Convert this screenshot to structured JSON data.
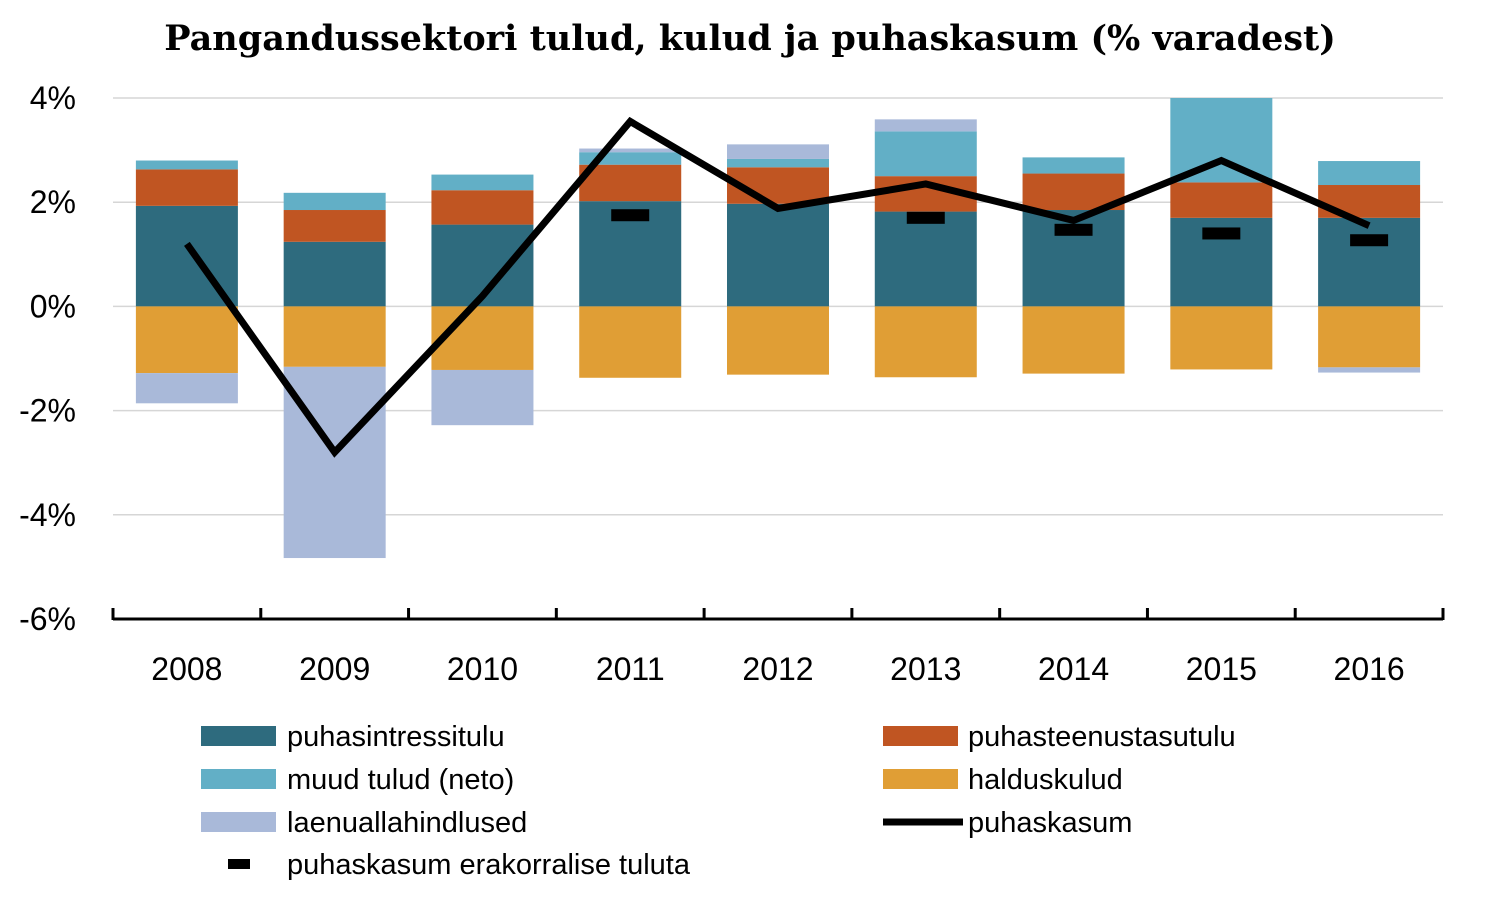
{
  "chart_data": {
    "type": "bar",
    "title": "Pangandussektori tulud, kulud ja puhaskasum (% varadest)",
    "categories": [
      "2008",
      "2009",
      "2010",
      "2011",
      "2012",
      "2013",
      "2014",
      "2015",
      "2016"
    ],
    "y_ticks": [
      "4%",
      "2%",
      "0%",
      "-2%",
      "-4%",
      "-6%"
    ],
    "y_tick_values": [
      4,
      2,
      0,
      -2,
      -4,
      -6
    ],
    "ylim": [
      -6,
      4
    ],
    "grid": true,
    "legend_position": "bottom",
    "stacked": true,
    "series": [
      {
        "name": "puhasintressitulu",
        "kind": "bar",
        "color": "#2e6b7e",
        "values": [
          1.93,
          1.24,
          1.57,
          2.02,
          1.97,
          1.82,
          1.85,
          1.7,
          1.7
        ]
      },
      {
        "name": "puhasteenustasutulu",
        "kind": "bar",
        "color": "#c05522",
        "values": [
          0.7,
          0.61,
          0.66,
          0.7,
          0.7,
          0.68,
          0.7,
          0.68,
          0.63
        ]
      },
      {
        "name": "muud tulud (neto)",
        "kind": "bar",
        "color": "#62afc6",
        "values": [
          0.17,
          0.33,
          0.3,
          0.24,
          0.16,
          0.86,
          0.31,
          1.62,
          0.46
        ]
      },
      {
        "name": "halduskulud",
        "kind": "bar",
        "color": "#e09e35",
        "values": [
          -1.28,
          -1.16,
          -1.22,
          -1.37,
          -1.31,
          -1.36,
          -1.29,
          -1.21,
          -1.17
        ]
      },
      {
        "name": "laenuallahindlused",
        "kind": "bar",
        "color": "#a9b9d9",
        "values": [
          -0.58,
          -3.67,
          -1.06,
          0.07,
          0.28,
          0.23,
          0,
          0,
          -0.1
        ]
      },
      {
        "name": "puhaskasum",
        "kind": "line",
        "color": "#000000",
        "values": [
          1.2,
          -2.8,
          0.2,
          3.55,
          1.88,
          2.35,
          1.65,
          2.8,
          1.55
        ]
      },
      {
        "name": "puhaskasum erakorralise tuluta",
        "kind": "marker",
        "color": "#000000",
        "values": [
          null,
          null,
          null,
          1.75,
          null,
          1.7,
          1.47,
          1.4,
          1.27
        ]
      }
    ]
  }
}
